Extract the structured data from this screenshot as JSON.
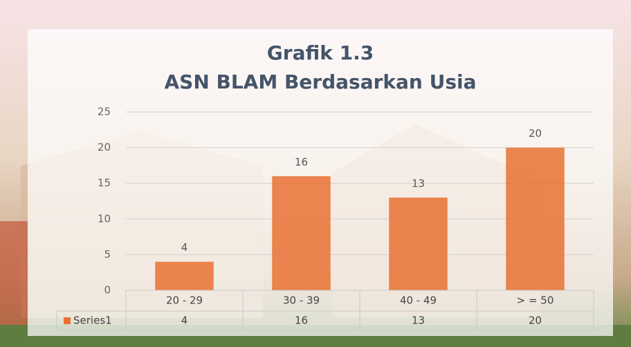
{
  "chart_data": {
    "type": "bar",
    "title": "Grafik 1.3",
    "subtitle": "ASN BLAM Berdasarkan Usia",
    "categories": [
      "20 - 29",
      "30 - 39",
      "40 - 49",
      "> = 50"
    ],
    "series": [
      {
        "name": "Series1",
        "color": "#e97132",
        "values": [
          4,
          16,
          13,
          20
        ]
      }
    ],
    "ylim": [
      0,
      25
    ],
    "yticks": [
      0,
      5,
      10,
      15,
      20,
      25
    ],
    "grid": true,
    "data_labels": true,
    "data_table": true
  }
}
